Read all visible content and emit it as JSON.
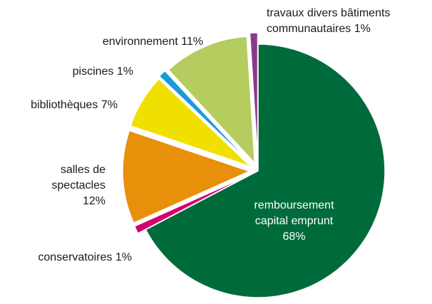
{
  "chart_data": {
    "type": "pie",
    "categories": [
      "remboursement capital emprunt",
      "conservatoires",
      "salles de spectacles",
      "bibliothèques",
      "piscines",
      "environnement",
      "travaux divers bâtiments communautaires"
    ],
    "values": [
      68,
      1,
      12,
      7,
      1,
      11,
      1
    ],
    "value_labels": [
      "68%",
      "1%",
      "12%",
      "7%",
      "1%",
      "11%",
      "1%"
    ],
    "colors": [
      "#006b3a",
      "#d4006e",
      "#e8900a",
      "#f0e000",
      "#1a9ad6",
      "#b5cc5e",
      "#8a3a8a"
    ]
  }
}
